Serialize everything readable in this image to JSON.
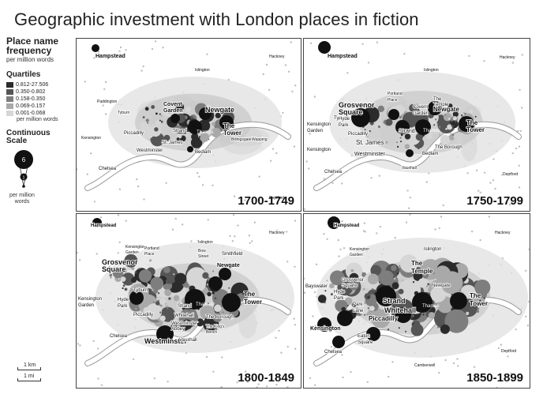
{
  "title": "Geographic investment with London places in fiction",
  "legend": {
    "heading_line1": "Place name",
    "heading_line2": "frequency",
    "subheading": "per million words",
    "quartiles_heading": "Quartiles",
    "quartiles": [
      {
        "label": "0.812-27.506",
        "color": "#2b2b2b"
      },
      {
        "label": "0.350-0.802",
        "color": "#555555"
      },
      {
        "label": "0.158-0.350",
        "color": "#7e7e7e"
      },
      {
        "label": "0.069-0.157",
        "color": "#a9a9a9"
      },
      {
        "label": "0.001-0.068",
        "color": "#d6d6d6"
      }
    ],
    "quartiles_note": "per million words",
    "continuous_heading_line1": "Continuous",
    "continuous_heading_line2": "Scale",
    "continuous_values": [
      "6",
      "1"
    ],
    "continuous_note": "per million words"
  },
  "scale_bars": [
    {
      "label": "1 km"
    },
    {
      "label": "1 mi"
    }
  ],
  "colors": {
    "river": "#ffffff",
    "river_edge": "#9a9a9a",
    "ground": "#ffffff",
    "density_light": "#e2e2e2",
    "density_dark": "#c9c9c9",
    "point_dark": "#111111"
  },
  "panels": [
    {
      "period": "1700-1749",
      "labels": [
        {
          "text": "Hampstead"
        },
        {
          "text": "Islington"
        },
        {
          "text": "Hackney"
        },
        {
          "text": "Paddington"
        },
        {
          "text": "Tyburn"
        },
        {
          "text": "Covent"
        },
        {
          "text": "Garden"
        },
        {
          "text": "Newgate"
        },
        {
          "text": "Kensington"
        },
        {
          "text": "Piccadilly"
        },
        {
          "text": "St. James"
        },
        {
          "text": "Strand"
        },
        {
          "text": "Thames"
        },
        {
          "text": "The"
        },
        {
          "text": "Tower"
        },
        {
          "text": "Billingsgate"
        },
        {
          "text": "Wapping"
        },
        {
          "text": "Westminster"
        },
        {
          "text": "Bedlam"
        },
        {
          "text": "Chelsea"
        },
        {
          "text": "Deptford"
        }
      ]
    },
    {
      "period": "1750-1799",
      "labels": [
        {
          "text": "Hampstead"
        },
        {
          "text": "Islington"
        },
        {
          "text": "Hackney"
        },
        {
          "text": "Portland"
        },
        {
          "text": "Place"
        },
        {
          "text": "Grosvenor"
        },
        {
          "text": "Square"
        },
        {
          "text": "Tyburn"
        },
        {
          "text": "Covent"
        },
        {
          "text": "Garden"
        },
        {
          "text": "The"
        },
        {
          "text": "Temple"
        },
        {
          "text": "Newgate"
        },
        {
          "text": "Kensington"
        },
        {
          "text": "Garden"
        },
        {
          "text": "Hyde"
        },
        {
          "text": "Park"
        },
        {
          "text": "Piccadilly"
        },
        {
          "text": "Strand"
        },
        {
          "text": "St. James"
        },
        {
          "text": "Thames"
        },
        {
          "text": "The"
        },
        {
          "text": "Tower"
        },
        {
          "text": "Kensington"
        },
        {
          "text": "Westminster"
        },
        {
          "text": "The Borough"
        },
        {
          "text": "Bedlam"
        },
        {
          "text": "Vauxhall"
        },
        {
          "text": "Chelsea"
        },
        {
          "text": "Deptford"
        }
      ]
    },
    {
      "period": "1800-1849",
      "labels": [
        {
          "text": "Hampstead"
        },
        {
          "text": "Islington"
        },
        {
          "text": "Hackney"
        },
        {
          "text": "Kensington"
        },
        {
          "text": "Garden"
        },
        {
          "text": "Portland"
        },
        {
          "text": "Place"
        },
        {
          "text": "Bow"
        },
        {
          "text": "Street"
        },
        {
          "text": "Smithfield"
        },
        {
          "text": "Grosvenor"
        },
        {
          "text": "Square"
        },
        {
          "text": "Newgate"
        },
        {
          "text": "Tyburn"
        },
        {
          "text": "Kensington"
        },
        {
          "text": "Garden"
        },
        {
          "text": "Hyde"
        },
        {
          "text": "Park"
        },
        {
          "text": "Strand"
        },
        {
          "text": "Thames"
        },
        {
          "text": "The"
        },
        {
          "text": "Tower"
        },
        {
          "text": "Piccadilly"
        },
        {
          "text": "Whitehall"
        },
        {
          "text": "Westminster"
        },
        {
          "text": "Abbey"
        },
        {
          "text": "The Borough"
        },
        {
          "text": "The King's"
        },
        {
          "text": "Bench"
        },
        {
          "text": "Chelsea"
        },
        {
          "text": "Westminster"
        },
        {
          "text": "Vauxhall"
        }
      ]
    },
    {
      "period": "1850-1899",
      "labels": [
        {
          "text": "Hampstead"
        },
        {
          "text": "Islington"
        },
        {
          "text": "Hackney"
        },
        {
          "text": "Kensington"
        },
        {
          "text": "Garden"
        },
        {
          "text": "The"
        },
        {
          "text": "Temple"
        },
        {
          "text": "Bayswater"
        },
        {
          "text": "Grosvenor"
        },
        {
          "text": "Square"
        },
        {
          "text": "Newgate"
        },
        {
          "text": "Hyde"
        },
        {
          "text": "Park"
        },
        {
          "text": "Park"
        },
        {
          "text": "Lane"
        },
        {
          "text": "Strand"
        },
        {
          "text": "Thames"
        },
        {
          "text": "The"
        },
        {
          "text": "Tower"
        },
        {
          "text": "Piccadilly"
        },
        {
          "text": "Whitehall"
        },
        {
          "text": "Kensington"
        },
        {
          "text": "Eaton"
        },
        {
          "text": "Square"
        },
        {
          "text": "Chelsea"
        },
        {
          "text": "Deptford"
        },
        {
          "text": "Camberwell"
        }
      ]
    }
  ]
}
